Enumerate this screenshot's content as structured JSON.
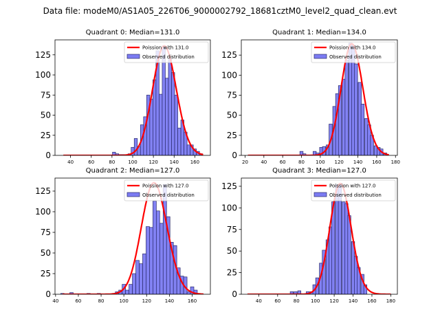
{
  "figure": {
    "suptitle": "Data file: modeM0/AS1A05_226T06_9000002792_18681cztM0_level2_quad_clean.evt"
  },
  "colors": {
    "bar_fill": "#7b7bf2",
    "bar_edge": "#2a2a6a",
    "poisson_line": "#ff0000"
  },
  "chart_data": [
    {
      "type": "bar",
      "title": "Quadrant 0: Median=131.0",
      "xlim": [
        25,
        175
      ],
      "ylim": [
        0,
        143.6
      ],
      "xticks": [
        40,
        60,
        80,
        100,
        120,
        140,
        160
      ],
      "yticks": [
        0,
        25,
        50,
        75,
        100,
        125
      ],
      "bin_width": 3,
      "legend": {
        "position": "top-right",
        "entries": [
          "Poission with 131.0",
          "Observed distribution"
        ]
      },
      "poisson_mean": 131.0,
      "poisson_scale": 136,
      "poisson_xrange": [
        33,
        168
      ],
      "bins": [
        82,
        85,
        88,
        91,
        94,
        97,
        100,
        103,
        106,
        109,
        112,
        115,
        118,
        121,
        124,
        127,
        130,
        133,
        136,
        139,
        142,
        145,
        148,
        151,
        154,
        157,
        160,
        163,
        166
      ],
      "counts": [
        4,
        2,
        1,
        1,
        1,
        2,
        10,
        21,
        11,
        38,
        48,
        75,
        70,
        94,
        130,
        76,
        136,
        96,
        120,
        103,
        75,
        34,
        44,
        29,
        13,
        13,
        8,
        5,
        2
      ]
    },
    {
      "type": "bar",
      "title": "Quadrant 1: Median=134.0",
      "xlim": [
        16,
        182
      ],
      "ylim": [
        0,
        144
      ],
      "xticks": [
        20,
        40,
        60,
        80,
        100,
        120,
        140,
        160,
        180
      ],
      "yticks": [
        0,
        25,
        50,
        75,
        100,
        125
      ],
      "bin_width": 3.4,
      "legend": {
        "position": "top-right",
        "entries": [
          "Poission with 134.0",
          "Observed distribution"
        ]
      },
      "poisson_mean": 134.0,
      "poisson_scale": 139,
      "poisson_xrange": [
        23,
        173
      ],
      "bins": [
        80,
        83,
        94,
        97,
        101,
        104,
        108,
        111,
        115,
        118,
        121,
        125,
        128,
        132,
        135,
        138,
        142,
        145,
        149,
        152,
        155,
        159,
        162,
        165,
        169
      ],
      "counts": [
        5,
        2,
        5,
        3,
        10,
        11,
        13,
        39,
        61,
        77,
        87,
        95,
        119,
        140,
        137,
        114,
        91,
        64,
        46,
        38,
        25,
        12,
        10,
        8,
        3
      ]
    },
    {
      "type": "bar",
      "title": "Quadrant 2: Median=127.0",
      "xlim": [
        39.5,
        176
      ],
      "ylim": [
        0,
        140.8
      ],
      "xticks": [
        40,
        60,
        80,
        100,
        120,
        140,
        160
      ],
      "yticks": [
        0,
        25,
        50,
        75,
        100,
        125
      ],
      "bin_width": 3,
      "legend": {
        "position": "top-right",
        "entries": [
          "Poission with 127.0",
          "Observed distribution"
        ]
      },
      "poisson_mean": 127.0,
      "poisson_scale": 135,
      "poisson_xrange": [
        46,
        170
      ],
      "bins": [
        46,
        54,
        69,
        78,
        94,
        97,
        100,
        103,
        106,
        109,
        112,
        115,
        118,
        121,
        124,
        127,
        130,
        133,
        136,
        139,
        142,
        145,
        148,
        151,
        154,
        157,
        160,
        163
      ],
      "counts": [
        1,
        2,
        1,
        1,
        3,
        5,
        12,
        5,
        12,
        25,
        41,
        37,
        49,
        82,
        81,
        113,
        101,
        86,
        133,
        94,
        63,
        59,
        32,
        22,
        21,
        3,
        9,
        5
      ]
    },
    {
      "type": "bar",
      "title": "Quadrant 3: Median=127.0",
      "xlim": [
        21.5,
        187
      ],
      "ylim": [
        0,
        134.5
      ],
      "xticks": [
        40,
        60,
        80,
        100,
        120,
        140,
        160,
        180
      ],
      "yticks": [
        0,
        25,
        50,
        75,
        100,
        125
      ],
      "bin_width": 3.3,
      "legend": {
        "position": "top-right",
        "entries": [
          "Poission with 127.0",
          "Observed distribution"
        ]
      },
      "poisson_mean": 127.0,
      "poisson_scale": 128,
      "poisson_xrange": [
        28,
        180
      ],
      "bins": [
        75,
        79,
        83,
        92,
        96,
        99,
        102,
        106,
        109,
        113,
        116,
        119,
        123,
        126,
        130,
        133,
        136,
        140,
        143,
        146,
        150,
        153
      ],
      "counts": [
        3,
        3,
        4,
        3,
        3,
        11,
        19,
        36,
        51,
        63,
        78,
        107,
        127,
        127,
        107,
        105,
        91,
        61,
        44,
        31,
        23,
        11
      ]
    }
  ]
}
